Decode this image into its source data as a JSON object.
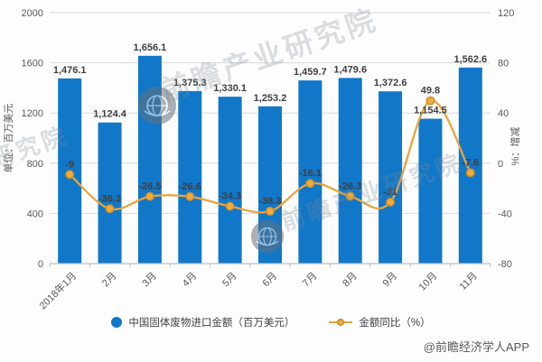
{
  "watermark": {
    "brand": "前瞻产业研究院"
  },
  "credit": "@前瞻经济学人APP",
  "legend": {
    "items": [
      {
        "label": "中国固体废物进口金额（百万美元）",
        "marker": "circle",
        "color": "#1177C8"
      },
      {
        "label": "金额同比（%）",
        "marker": "line-circle",
        "color": "#E8A53C"
      }
    ]
  },
  "chart_data": {
    "type": "combo-bar-line",
    "title": "",
    "categories": [
      "2018年1月",
      "2月",
      "3月",
      "4月",
      "5月",
      "6月",
      "7月",
      "8月",
      "9月",
      "10月",
      "11月"
    ],
    "series": [
      {
        "name": "中国固体废物进口金额（百万美元）",
        "type": "bar",
        "axis": "left",
        "color": "#1177C8",
        "values": [
          1476.1,
          1124.4,
          1656.1,
          1375.3,
          1330.1,
          1253.2,
          1459.7,
          1479.6,
          1372.6,
          1154.5,
          1562.6
        ],
        "labels": [
          "1,476.1",
          "1,124.4",
          "1,656.1",
          "1,375.3",
          "1,330.1",
          "1,253.2",
          "1,459.7",
          "1,479.6",
          "1,372.6",
          "1,154.5",
          "1,562.6"
        ]
      },
      {
        "name": "金额同比（%）",
        "type": "line",
        "axis": "right",
        "color": "#E8A53C",
        "marker_fill": "#F2AB3A",
        "marker_stroke": "#C98E2F",
        "values": [
          -9,
          -36.3,
          -26.5,
          -26.6,
          -34.3,
          -38.3,
          -16.1,
          -26.3,
          -31,
          49.8,
          -7.6
        ],
        "labels": [
          "-9",
          "-36.3",
          "-26.5",
          "-26.6",
          "-34.3",
          "-38.3",
          "-16.1",
          "-26.3",
          "-31",
          "49.8",
          "-7.6"
        ]
      }
    ],
    "left_axis": {
      "title": "单位：百万美元",
      "min": 0,
      "max": 2000,
      "step": 400,
      "ticks": [
        "0",
        "400",
        "800",
        "1200",
        "1600",
        "2000"
      ]
    },
    "right_axis": {
      "title": "%：增减",
      "min": -80,
      "max": 120,
      "step": 40,
      "ticks": [
        "-80",
        "-40",
        "0",
        "40",
        "80",
        "120"
      ]
    },
    "grid": "horizontal",
    "legend_position": "bottom"
  },
  "styles": {
    "background": "#FDFDFD",
    "grid_color": "#D9D9D9",
    "axis_color": "#BFBFBF",
    "tick_color": "#595959",
    "label_color": "#3F3F3F"
  }
}
